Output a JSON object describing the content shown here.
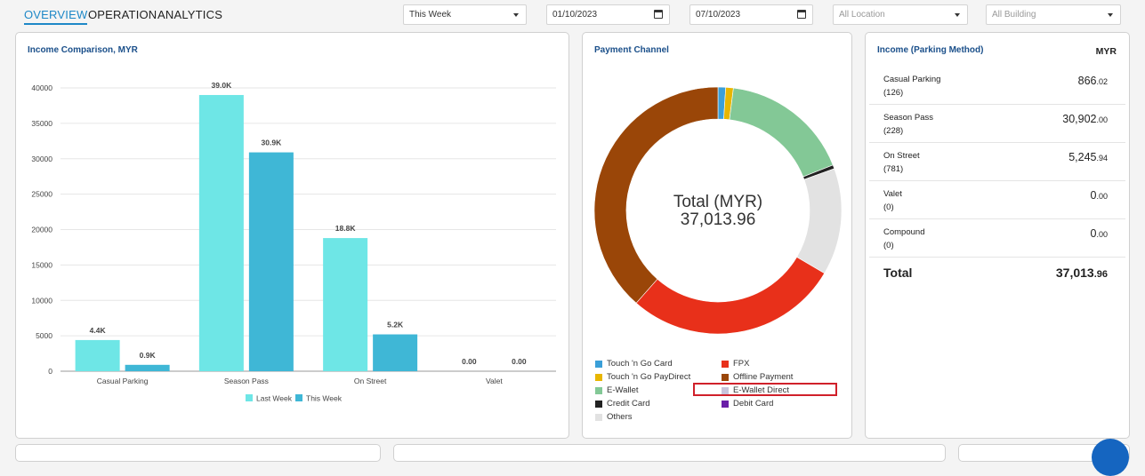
{
  "tabs": [
    {
      "label": "OVERVIEW"
    },
    {
      "label": "OPERATION"
    },
    {
      "label": "ANALYTICS"
    }
  ],
  "filters": {
    "period": "This Week",
    "start_date": "01/10/2023",
    "end_date": "07/10/2023",
    "location": "All Location",
    "building": "All Building"
  },
  "income_comparison": {
    "title": "Income Comparison, MYR",
    "chart_data": {
      "type": "bar",
      "categories": [
        "Casual Parking",
        "Season Pass",
        "On Street",
        "Valet"
      ],
      "series": [
        {
          "name": "Last Week",
          "values": [
            4400,
            39000,
            18800,
            0
          ],
          "labels": [
            "4.4K",
            "39.0K",
            "18.8K",
            "0.00"
          ],
          "color": "#6ee6e6"
        },
        {
          "name": "This Week",
          "values": [
            900,
            30900,
            5200,
            0
          ],
          "labels": [
            "0.9K",
            "30.9K",
            "5.2K",
            "0.00"
          ],
          "color": "#3fb7d6"
        }
      ],
      "yticks": [
        "0",
        "5000",
        "10000",
        "15000",
        "20000",
        "25000",
        "30000",
        "35000",
        "40000"
      ],
      "ylim": [
        0,
        40000
      ],
      "grid": true,
      "legend": "bottom"
    }
  },
  "payment_channel": {
    "title": "Payment Channel",
    "center_label": "Total (MYR)",
    "center_value": "37,013.96",
    "chart_data": {
      "type": "pie",
      "slices": [
        {
          "name": "Touch 'n Go Card",
          "value": 1.0,
          "color": "#3a9fd8"
        },
        {
          "name": "Touch 'n Go PayDirect",
          "value": 1.0,
          "color": "#e8b600"
        },
        {
          "name": "E-Wallet",
          "value": 17.0,
          "color": "#83c896"
        },
        {
          "name": "Credit Card",
          "value": 0.5,
          "color": "#222222"
        },
        {
          "name": "Others",
          "value": 14.0,
          "color": "#e2e2e2"
        },
        {
          "name": "FPX",
          "value": 28.0,
          "color": "#e8301a"
        },
        {
          "name": "Offline Payment",
          "value": 38.5,
          "color": "#9a4608"
        }
      ]
    },
    "legend": [
      {
        "name": "Touch 'n Go Card",
        "color": "#3a9fd8"
      },
      {
        "name": "FPX",
        "color": "#e8301a"
      },
      {
        "name": "Touch 'n Go PayDirect",
        "color": "#e8b600"
      },
      {
        "name": "Offline Payment",
        "color": "#9a4608"
      },
      {
        "name": "E-Wallet",
        "color": "#83c896"
      },
      {
        "name": "E-Wallet Direct",
        "color": "#c8c4dc"
      },
      {
        "name": "Credit Card",
        "color": "#222222"
      },
      {
        "name": "Debit Card",
        "color": "#6a1fa8"
      },
      {
        "name": "Others",
        "color": "#e2e2e2"
      }
    ]
  },
  "parking_method": {
    "title": "Income (Parking Method)",
    "currency": "MYR",
    "rows": [
      {
        "name": "Casual Parking",
        "count": "(126)",
        "value_int": "866",
        "value_dec": ".02"
      },
      {
        "name": "Season Pass",
        "count": "(228)",
        "value_int": "30,902",
        "value_dec": ".00"
      },
      {
        "name": "On Street",
        "count": "(781)",
        "value_int": "5,245",
        "value_dec": ".94"
      },
      {
        "name": "Valet",
        "count": "(0)",
        "value_int": "0",
        "value_dec": ".00"
      },
      {
        "name": "Compound",
        "count": "(0)",
        "value_int": "0",
        "value_dec": ".00"
      }
    ],
    "total_label": "Total",
    "total_int": "37,013",
    "total_dec": ".96"
  }
}
